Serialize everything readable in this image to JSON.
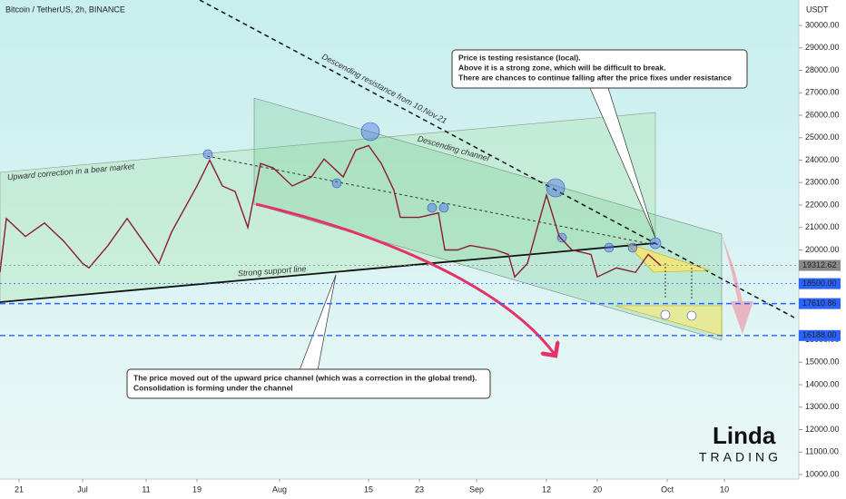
{
  "chart_data": {
    "type": "line",
    "title": "Bitcoin / TetherUS, 2h, BINANCE",
    "currency": "USDT",
    "color": "#8b1a3a",
    "x": [
      -13,
      -12,
      -9,
      -6,
      -3,
      0,
      1,
      4,
      7,
      10,
      12,
      14,
      18,
      20,
      22,
      24,
      26,
      28,
      30,
      33,
      36,
      38,
      41,
      43,
      45,
      47,
      49,
      50,
      53,
      56,
      57,
      59,
      61,
      65,
      67,
      68,
      70,
      72,
      73,
      75,
      77,
      80,
      81,
      84,
      87,
      89,
      91
    ],
    "values": [
      19000,
      21400,
      20600,
      21200,
      20400,
      19400,
      19200,
      20200,
      21400,
      20200,
      19400,
      20800,
      22850,
      24000,
      22850,
      22600,
      21000,
      23850,
      23650,
      22850,
      23250,
      24050,
      23250,
      24450,
      24650,
      23850,
      22650,
      21450,
      21450,
      21650,
      20000,
      20000,
      20200,
      20000,
      19800,
      18800,
      19400,
      21450,
      22450,
      20600,
      20000,
      19800,
      18800,
      19200,
      19000,
      19800,
      19300
    ],
    "xlim": [
      -13,
      112.7
    ],
    "ylim": [
      9798,
      31131
    ],
    "xticks": [
      {
        "value": -10,
        "label": "21"
      },
      {
        "value": 0,
        "label": "Jul"
      },
      {
        "value": 10,
        "label": "11"
      },
      {
        "value": 18,
        "label": "19"
      },
      {
        "value": 31,
        "label": "Aug"
      },
      {
        "value": 45,
        "label": "15"
      },
      {
        "value": 53,
        "label": "23"
      },
      {
        "value": 62,
        "label": "Sep"
      },
      {
        "value": 73,
        "label": "12"
      },
      {
        "value": 81,
        "label": "20"
      },
      {
        "value": 92,
        "label": "Oct"
      },
      {
        "value": 101,
        "label": "10"
      }
    ],
    "yticks": [
      {
        "value": 10000,
        "label": "10000.00"
      },
      {
        "value": 11000,
        "label": "11000.00"
      },
      {
        "value": 12000,
        "label": "12000.00"
      },
      {
        "value": 13000,
        "label": "13000.00"
      },
      {
        "value": 14000,
        "label": "14000.00"
      },
      {
        "value": 15000,
        "label": "15000.00"
      },
      {
        "value": 16000,
        "label": "16000.00"
      },
      {
        "value": 20000,
        "label": "20000.00"
      },
      {
        "value": 21000,
        "label": "21000.00"
      },
      {
        "value": 22000,
        "label": "22000.00"
      },
      {
        "value": 23000,
        "label": "23000.00"
      },
      {
        "value": 24000,
        "label": "24000.00"
      },
      {
        "value": 25000,
        "label": "25000.00"
      },
      {
        "value": 26000,
        "label": "26000.00"
      },
      {
        "value": 27000,
        "label": "27000.00"
      },
      {
        "value": 28000,
        "label": "28000.00"
      },
      {
        "value": 29000,
        "label": "29000.00"
      },
      {
        "value": 30000,
        "label": "30000.00"
      }
    ],
    "price_labels": [
      {
        "value": 19312.62,
        "label": "19312.62",
        "color": "#888888",
        "line": "dotted"
      },
      {
        "value": 18500,
        "label": "18500.00",
        "color": "#2962ff",
        "line": "dotted"
      },
      {
        "value": 17610.86,
        "label": "17610.86",
        "color": "#2962ff",
        "line": "dashed"
      },
      {
        "value": 16188,
        "label": "16188.00",
        "color": "#2962ff",
        "line": "dashed"
      }
    ],
    "annotations": {
      "resistance": "Descending resistance from 10.Nov.21",
      "channel": "Descending channel",
      "correction": "Upward correction in a bear market",
      "support": "Strong support line",
      "note1": [
        "Price is testing resistance (local).",
        "Above it is a strong zone, which will be difficult to break.",
        "There are chances to continue falling after the price fixes under resistance"
      ],
      "note2": [
        "The price moved out of the upward price channel (which was a correction in the global trend).",
        "Consolidation is forming under the channel"
      ]
    },
    "logo": [
      "Linda",
      "TRADING"
    ]
  }
}
